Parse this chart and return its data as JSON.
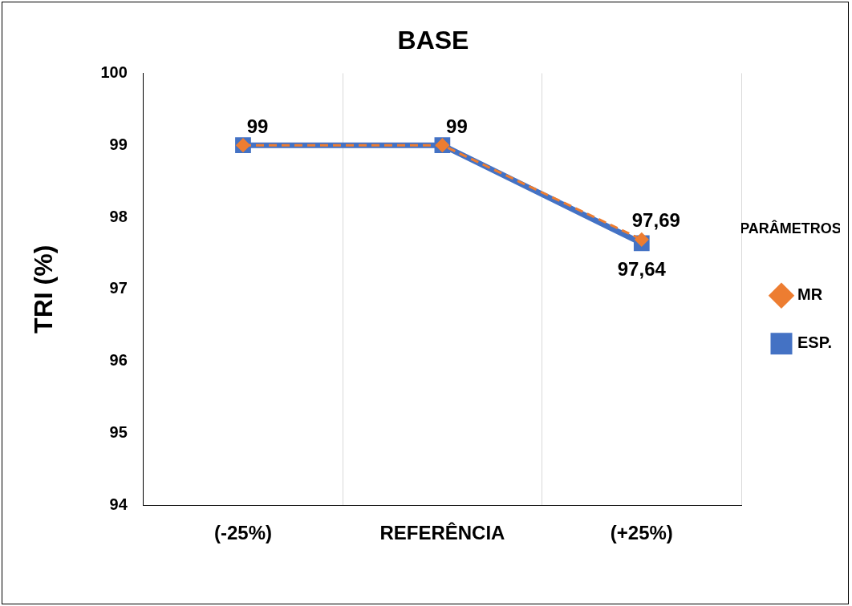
{
  "chart_data": {
    "type": "line",
    "title": "BASE",
    "ylabel": "TRI (%)",
    "legend_title": "PARÂMETROS",
    "categories": [
      "(-25%)",
      "REFERÊNCIA",
      "(+25%)"
    ],
    "series": [
      {
        "name": "MR",
        "color": "#ed7d31",
        "values": [
          99,
          99,
          97.69
        ],
        "marker": "diamond",
        "line_style": "dashed",
        "value_labels": [
          "99",
          "99",
          "97,69"
        ]
      },
      {
        "name": "ESP.",
        "color": "#4472c4",
        "values": [
          99,
          99,
          97.64
        ],
        "marker": "square",
        "line_style": "solid",
        "value_labels": [
          null,
          null,
          "97,64"
        ]
      }
    ],
    "ylim": [
      94,
      100
    ],
    "yticks": [
      94,
      95,
      96,
      97,
      98,
      99,
      100
    ],
    "grid": "x",
    "legend": "right"
  }
}
